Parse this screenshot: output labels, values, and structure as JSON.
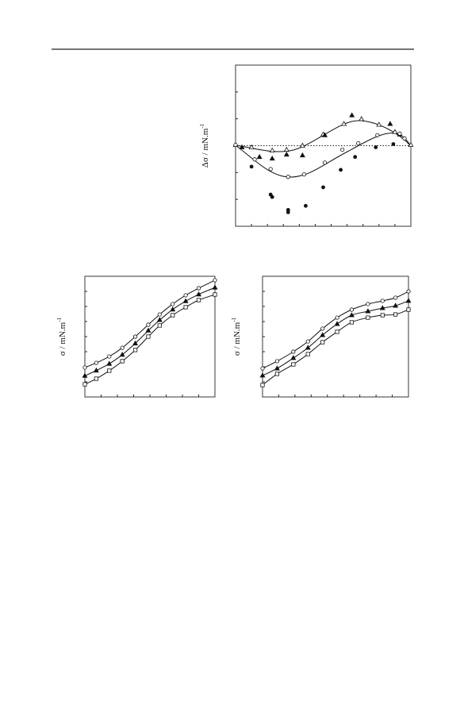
{
  "chart_data": [
    {
      "type": "scatter",
      "y_label": "Δσ / mN.m",
      "y_label_sup": "-1",
      "xlim": [
        0,
        11
      ],
      "ylim": [
        -3,
        3
      ],
      "series": [
        {
          "marker": "triangle-open",
          "color": "#111",
          "x": [
            0,
            1.0,
            2.3,
            3.2,
            4.2,
            5.5,
            6.8,
            7.9,
            9.0,
            10.0,
            11.0
          ],
          "values": [
            0.03,
            -0.06,
            -0.18,
            -0.15,
            0,
            0.42,
            0.81,
            0.99,
            0.78,
            0.51,
            0.03
          ]
        },
        {
          "marker": "triangle-filled",
          "color": "#111",
          "x": [
            0.4,
            1.5,
            2.3,
            3.2,
            4.2,
            5.6,
            7.3,
            9.7,
            10.3
          ],
          "values": [
            -0.06,
            -0.42,
            -0.48,
            -0.33,
            -0.36,
            0.39,
            1.13,
            0.81,
            0.42
          ]
        },
        {
          "marker": "circle-open",
          "color": "#111",
          "x": [
            0,
            1.2,
            2.2,
            3.3,
            4.3,
            5.6,
            6.7,
            7.7,
            8.9,
            10.3,
            10.6
          ],
          "values": [
            0.03,
            -0.51,
            -0.87,
            -1.16,
            -1.07,
            -0.63,
            -0.15,
            0.09,
            0.39,
            0.45,
            0.27
          ]
        },
        {
          "marker": "circle-filled",
          "color": "#111",
          "x": [
            1.0,
            2.2,
            2.3,
            3.3,
            3.3,
            4.4,
            5.5,
            6.6,
            7.5,
            8.8,
            9.9
          ],
          "values": [
            -0.78,
            -1.82,
            -1.91,
            -2.39,
            -2.48,
            -2.24,
            -1.55,
            -0.9,
            -0.42,
            -0.06,
            0.06
          ]
        }
      ]
    },
    {
      "type": "line",
      "y_label": "σ / mN.m",
      "y_label_sup": "-1",
      "xlim": [
        0,
        8
      ],
      "ylim": [
        0,
        8
      ],
      "series": [
        {
          "marker": "circle-open",
          "color": "#111",
          "x": [
            0,
            0.7,
            1.5,
            2.3,
            3.1,
            3.9,
            4.6,
            5.4,
            6.2,
            7.0,
            8.0
          ],
          "values": [
            1.95,
            2.26,
            2.68,
            3.26,
            4.0,
            4.79,
            5.47,
            6.16,
            6.74,
            7.21,
            7.74
          ]
        },
        {
          "marker": "triangle-filled",
          "color": "#111",
          "x": [
            0,
            0.7,
            1.5,
            2.3,
            3.1,
            3.9,
            4.6,
            5.4,
            6.2,
            7.0,
            8.0
          ],
          "values": [
            1.4,
            1.75,
            2.2,
            2.8,
            3.55,
            4.4,
            5.1,
            5.8,
            6.35,
            6.8,
            7.25
          ]
        },
        {
          "marker": "square-open",
          "color": "#111",
          "x": [
            0,
            0.7,
            1.5,
            2.3,
            3.1,
            3.9,
            4.6,
            5.4,
            6.2,
            7.0,
            8.0
          ],
          "values": [
            0.84,
            1.21,
            1.74,
            2.37,
            3.11,
            4.0,
            4.74,
            5.42,
            5.95,
            6.42,
            6.79
          ]
        }
      ]
    },
    {
      "type": "line",
      "y_label": "σ / mN.m",
      "y_label_sup": "-1",
      "xlim": [
        0,
        9
      ],
      "ylim": [
        0,
        8
      ],
      "series": [
        {
          "marker": "circle-open",
          "color": "#111",
          "x": [
            0,
            0.9,
            1.9,
            2.8,
            3.7,
            4.6,
            5.5,
            6.5,
            7.4,
            8.2,
            9.0
          ],
          "values": [
            1.89,
            2.37,
            3.0,
            3.68,
            4.53,
            5.26,
            5.79,
            6.16,
            6.37,
            6.58,
            7.0
          ]
        },
        {
          "marker": "triangle-filled",
          "color": "#111",
          "x": [
            0,
            0.9,
            1.9,
            2.8,
            3.7,
            4.6,
            5.5,
            6.5,
            7.4,
            8.2,
            9.0
          ],
          "values": [
            1.42,
            1.89,
            2.58,
            3.26,
            4.1,
            4.84,
            5.42,
            5.68,
            5.89,
            6.05,
            6.37
          ]
        },
        {
          "marker": "square-open",
          "color": "#111",
          "x": [
            0,
            0.9,
            1.9,
            2.8,
            3.7,
            4.6,
            5.5,
            6.5,
            7.4,
            8.2,
            9.0
          ],
          "values": [
            0.79,
            1.53,
            2.16,
            2.84,
            3.63,
            4.32,
            4.95,
            5.26,
            5.42,
            5.47,
            5.79
          ]
        }
      ]
    }
  ]
}
